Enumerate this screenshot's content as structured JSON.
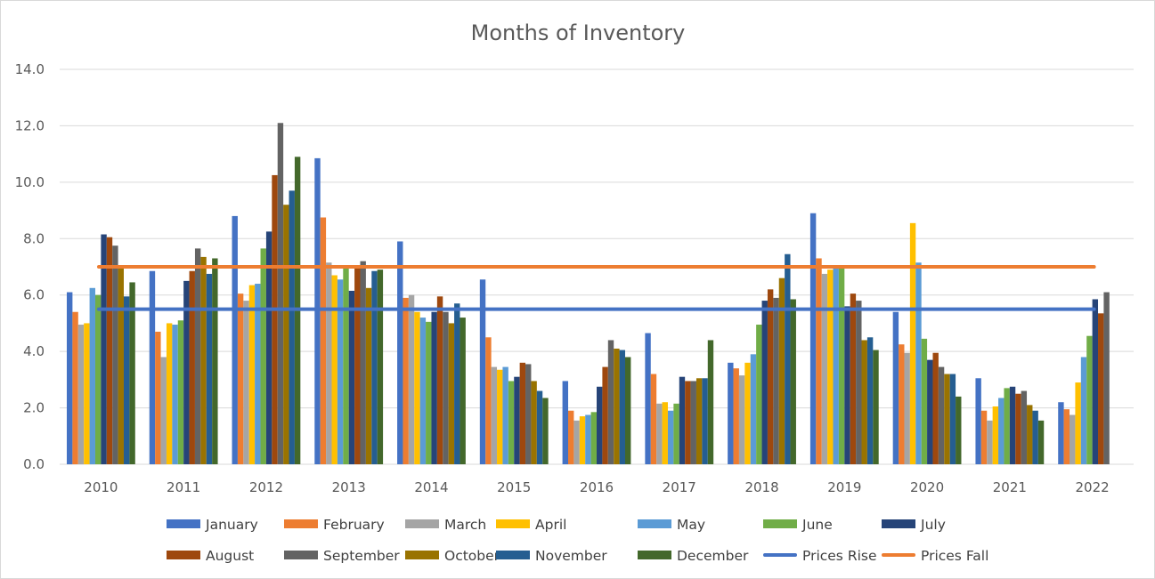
{
  "chart_data": {
    "type": "bar",
    "title": "Months of Inventory",
    "categories": [
      "2010",
      "2011",
      "2012",
      "2013",
      "2014",
      "2015",
      "2016",
      "2017",
      "2018",
      "2019",
      "2020",
      "2021",
      "2022"
    ],
    "ylim": [
      0,
      14
    ],
    "yticks": [
      "0.0",
      "2.0",
      "4.0",
      "6.0",
      "8.0",
      "10.0",
      "12.0",
      "14.0"
    ],
    "ytick_values": [
      0,
      2,
      4,
      6,
      8,
      10,
      12,
      14
    ],
    "grid": true,
    "legend_position": "bottom",
    "series": [
      {
        "name": "January",
        "color": "#4472C4",
        "values": [
          6.1,
          6.85,
          8.8,
          10.85,
          7.9,
          6.55,
          2.95,
          4.65,
          3.6,
          8.9,
          5.4,
          3.05,
          2.2
        ]
      },
      {
        "name": "February",
        "color": "#ED7D31",
        "values": [
          5.4,
          4.7,
          6.05,
          8.75,
          5.9,
          4.5,
          1.9,
          3.2,
          3.4,
          7.3,
          4.25,
          1.9,
          1.95
        ]
      },
      {
        "name": "March",
        "color": "#A5A5A5",
        "values": [
          4.95,
          3.8,
          5.8,
          7.15,
          6.0,
          3.45,
          1.55,
          2.15,
          3.15,
          6.75,
          3.95,
          1.55,
          1.75
        ]
      },
      {
        "name": "April",
        "color": "#FFC000",
        "values": [
          5.0,
          5.0,
          6.35,
          6.7,
          5.4,
          3.35,
          1.7,
          2.2,
          3.6,
          6.9,
          8.55,
          2.05,
          2.9
        ]
      },
      {
        "name": "May",
        "color": "#5B9BD5",
        "values": [
          6.25,
          4.95,
          6.4,
          6.55,
          5.2,
          3.45,
          1.75,
          1.9,
          3.9,
          7.0,
          7.15,
          2.35,
          3.8
        ]
      },
      {
        "name": "June",
        "color": "#70AD47",
        "values": [
          6.0,
          5.1,
          7.65,
          6.95,
          5.05,
          2.95,
          1.85,
          2.15,
          4.95,
          7.0,
          4.45,
          2.7,
          4.55
        ]
      },
      {
        "name": "July",
        "color": "#264478",
        "values": [
          8.15,
          6.5,
          8.25,
          6.15,
          5.4,
          3.1,
          2.75,
          3.1,
          5.8,
          5.6,
          3.7,
          2.75,
          5.85
        ]
      },
      {
        "name": "August",
        "color": "#9E480E",
        "values": [
          8.05,
          6.85,
          10.25,
          6.95,
          5.95,
          3.6,
          3.45,
          2.95,
          6.2,
          6.05,
          3.95,
          2.5,
          5.35
        ]
      },
      {
        "name": "September",
        "color": "#636363",
        "values": [
          7.75,
          7.65,
          12.1,
          7.2,
          5.4,
          3.55,
          4.4,
          2.95,
          5.9,
          5.8,
          3.45,
          2.6,
          6.1
        ]
      },
      {
        "name": "October",
        "color": "#997300",
        "values": [
          7.0,
          7.35,
          9.2,
          6.25,
          5.0,
          2.95,
          4.1,
          3.05,
          6.6,
          4.4,
          3.2,
          2.1,
          null
        ]
      },
      {
        "name": "November",
        "color": "#255E91",
        "values": [
          5.95,
          6.75,
          9.7,
          6.85,
          5.7,
          2.6,
          4.05,
          3.05,
          7.45,
          4.5,
          3.2,
          1.9,
          null
        ]
      },
      {
        "name": "December",
        "color": "#43682B",
        "values": [
          6.45,
          7.3,
          10.9,
          6.9,
          5.2,
          2.35,
          3.8,
          4.4,
          5.85,
          4.05,
          2.4,
          1.55,
          null
        ]
      }
    ],
    "lines": [
      {
        "name": "Prices Rise",
        "color": "#4472C4",
        "value": 5.5
      },
      {
        "name": "Prices Fall",
        "color": "#ED7D31",
        "value": 7.0
      }
    ]
  }
}
